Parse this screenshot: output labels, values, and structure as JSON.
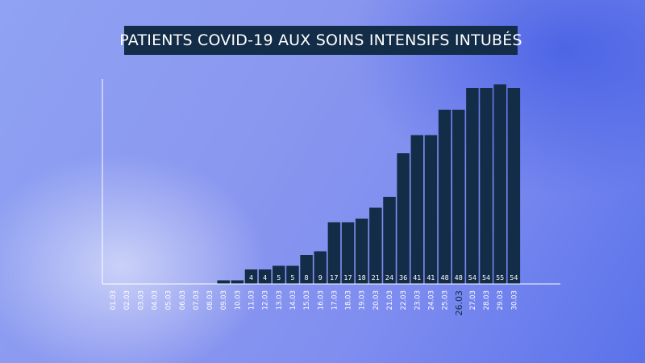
{
  "chart_data": {
    "type": "bar",
    "title": "PATIENTS COVID-19 AUX SOINS INTENSIFS INTUBÉS",
    "xlabel": "",
    "ylabel": "",
    "categories": [
      "01.03",
      "02.03",
      "03.03",
      "04.03",
      "05.03",
      "06.03",
      "07.03",
      "08.03",
      "09.03",
      "10.03",
      "11.03",
      "12.03",
      "13.03",
      "14.03",
      "15.03",
      "16.03",
      "17.03",
      "18.03",
      "19.03",
      "20.03",
      "21.03",
      "22.03",
      "23.03",
      "24.03",
      "25.03",
      "26.03",
      "27.03",
      "28.03",
      "29.03",
      "30.03"
    ],
    "values": [
      0,
      0,
      0,
      0,
      0,
      0,
      0,
      0,
      1,
      1,
      4,
      4,
      5,
      5,
      8,
      9,
      17,
      17,
      18,
      21,
      24,
      36,
      41,
      41,
      48,
      48,
      54,
      54,
      55,
      54
    ],
    "data_labels": [
      "",
      "",
      "",
      "",
      "",
      "",
      "",
      "",
      "",
      "",
      "4",
      "4",
      "5",
      "5",
      "8",
      "9",
      "17",
      "17",
      "18",
      "21",
      "24",
      "36",
      "41",
      "41",
      "48",
      "48",
      "54",
      "54",
      "55",
      "54"
    ],
    "highlighted_category": "26.03",
    "ylim": [
      0,
      60
    ],
    "grid": false,
    "legend": "none",
    "colors": {
      "bar": "#132c47",
      "label": "#ffffff",
      "axis": "#ffffff",
      "tick": "#ffffff",
      "highlight_tick": "#132c47",
      "title_bg": "#132c47",
      "title_text": "#ffffff"
    }
  }
}
